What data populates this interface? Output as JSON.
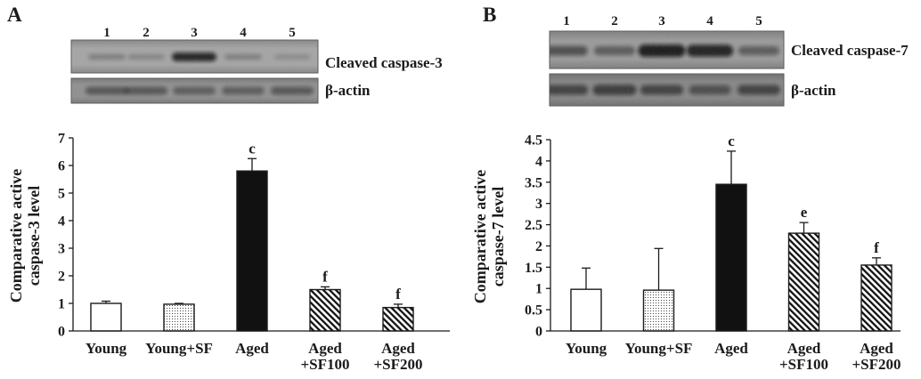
{
  "panels": [
    {
      "label": "A",
      "lanes": [
        "1",
        "2",
        "3",
        "4",
        "5"
      ],
      "blots": [
        {
          "label": "Cleaved caspase-3",
          "band_intensity": [
            0.3,
            0.25,
            0.95,
            0.3,
            0.2
          ]
        },
        {
          "label": "β-actin",
          "band_intensity": [
            0.5,
            0.5,
            0.45,
            0.45,
            0.5
          ]
        }
      ]
    },
    {
      "label": "B",
      "lanes": [
        "1",
        "2",
        "3",
        "4",
        "5"
      ],
      "blots": [
        {
          "label": "Cleaved caspase-7",
          "band_intensity": [
            0.6,
            0.5,
            1.0,
            0.95,
            0.5
          ]
        },
        {
          "label": "β-actin",
          "band_intensity": [
            0.65,
            0.7,
            0.65,
            0.55,
            0.65
          ]
        }
      ]
    }
  ],
  "chart_data": [
    {
      "type": "bar",
      "categories": [
        [
          "Young"
        ],
        [
          "Young+SF"
        ],
        [
          "Aged"
        ],
        [
          "Aged",
          "+SF100"
        ],
        [
          "Aged",
          "+SF200"
        ]
      ],
      "values": [
        1.0,
        0.97,
        5.8,
        1.5,
        0.85
      ],
      "errors": [
        0.08,
        0.03,
        0.45,
        0.1,
        0.12
      ],
      "annotations": [
        "",
        "",
        "c",
        "f",
        "f"
      ],
      "ylabel": [
        "Comparative active",
        "caspase-3 level"
      ],
      "ylim": [
        0,
        7
      ],
      "yticks": [
        0,
        1,
        2,
        3,
        4,
        5,
        6,
        7
      ],
      "grid": false
    },
    {
      "type": "bar",
      "categories": [
        [
          "Young"
        ],
        [
          "Young+SF"
        ],
        [
          "Aged"
        ],
        [
          "Aged",
          "+SF100"
        ],
        [
          "Aged",
          "+SF200"
        ]
      ],
      "values": [
        0.98,
        0.96,
        3.45,
        2.3,
        1.55
      ],
      "errors": [
        0.5,
        0.98,
        0.78,
        0.25,
        0.17
      ],
      "annotations": [
        "",
        "",
        "c",
        "e",
        "f"
      ],
      "ylabel": [
        "Comparative active",
        "caspase-7 level"
      ],
      "ylim": [
        0,
        4.5
      ],
      "yticks": [
        0,
        0.5,
        1,
        1.5,
        2,
        2.5,
        3,
        3.5,
        4,
        4.5
      ],
      "grid": false
    }
  ]
}
